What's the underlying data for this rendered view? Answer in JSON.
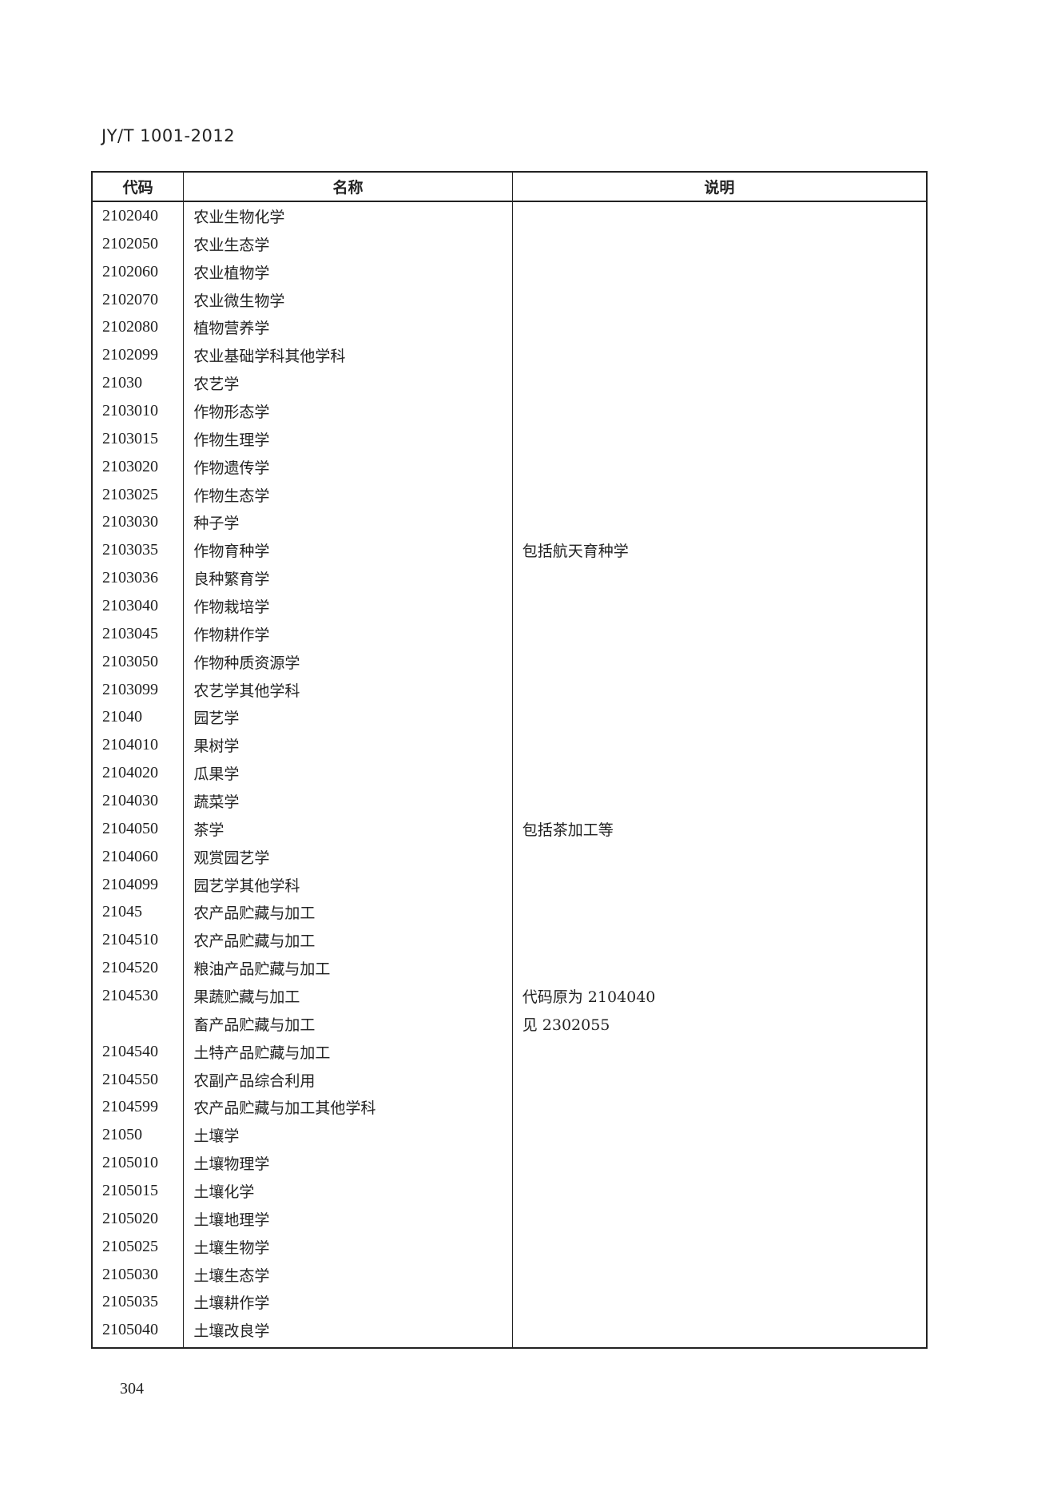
{
  "header": {
    "doc_code": "JY/T 1001-2012"
  },
  "table": {
    "columns": [
      "代码",
      "名称",
      "说明"
    ],
    "rows": [
      {
        "code": "2102040",
        "name": "农业生物化学",
        "note": ""
      },
      {
        "code": "2102050",
        "name": "农业生态学",
        "note": ""
      },
      {
        "code": "2102060",
        "name": "农业植物学",
        "note": ""
      },
      {
        "code": "2102070",
        "name": "农业微生物学",
        "note": ""
      },
      {
        "code": "2102080",
        "name": "植物营养学",
        "note": ""
      },
      {
        "code": "2102099",
        "name": "农业基础学科其他学科",
        "note": ""
      },
      {
        "code": "21030",
        "name": "农艺学",
        "note": ""
      },
      {
        "code": "2103010",
        "name": "作物形态学",
        "note": ""
      },
      {
        "code": "2103015",
        "name": "作物生理学",
        "note": ""
      },
      {
        "code": "2103020",
        "name": "作物遗传学",
        "note": ""
      },
      {
        "code": "2103025",
        "name": "作物生态学",
        "note": ""
      },
      {
        "code": "2103030",
        "name": "种子学",
        "note": ""
      },
      {
        "code": "2103035",
        "name": "作物育种学",
        "note": "包括航天育种学"
      },
      {
        "code": "2103036",
        "name": "良种繁育学",
        "note": ""
      },
      {
        "code": "2103040",
        "name": "作物栽培学",
        "note": ""
      },
      {
        "code": "2103045",
        "name": "作物耕作学",
        "note": ""
      },
      {
        "code": "2103050",
        "name": "作物种质资源学",
        "note": ""
      },
      {
        "code": "2103099",
        "name": "农艺学其他学科",
        "note": ""
      },
      {
        "code": "21040",
        "name": "园艺学",
        "note": ""
      },
      {
        "code": "2104010",
        "name": "果树学",
        "note": ""
      },
      {
        "code": "2104020",
        "name": "瓜果学",
        "note": ""
      },
      {
        "code": "2104030",
        "name": "蔬菜学",
        "note": ""
      },
      {
        "code": "2104050",
        "name": "茶学",
        "note": "包括茶加工等"
      },
      {
        "code": "2104060",
        "name": "观赏园艺学",
        "note": ""
      },
      {
        "code": "2104099",
        "name": "园艺学其他学科",
        "note": ""
      },
      {
        "code": "21045",
        "name": "农产品贮藏与加工",
        "note": ""
      },
      {
        "code": "2104510",
        "name": "农产品贮藏与加工",
        "note": ""
      },
      {
        "code": "2104520",
        "name": "粮油产品贮藏与加工",
        "note": ""
      },
      {
        "code": "2104530",
        "name": "果蔬贮藏与加工",
        "note": "代码原为 2104040"
      },
      {
        "code": "",
        "name": "畜产品贮藏与加工",
        "note": "见 2302055"
      },
      {
        "code": "2104540",
        "name": "土特产品贮藏与加工",
        "note": ""
      },
      {
        "code": "2104550",
        "name": "农副产品综合利用",
        "note": ""
      },
      {
        "code": "2104599",
        "name": "农产品贮藏与加工其他学科",
        "note": ""
      },
      {
        "code": "21050",
        "name": "土壤学",
        "note": ""
      },
      {
        "code": "2105010",
        "name": "土壤物理学",
        "note": ""
      },
      {
        "code": "2105015",
        "name": "土壤化学",
        "note": ""
      },
      {
        "code": "2105020",
        "name": "土壤地理学",
        "note": ""
      },
      {
        "code": "2105025",
        "name": "土壤生物学",
        "note": ""
      },
      {
        "code": "2105030",
        "name": "土壤生态学",
        "note": ""
      },
      {
        "code": "2105035",
        "name": "土壤耕作学",
        "note": ""
      },
      {
        "code": "2105040",
        "name": "土壤改良学",
        "note": ""
      }
    ]
  },
  "footer": {
    "page_number": "304"
  }
}
